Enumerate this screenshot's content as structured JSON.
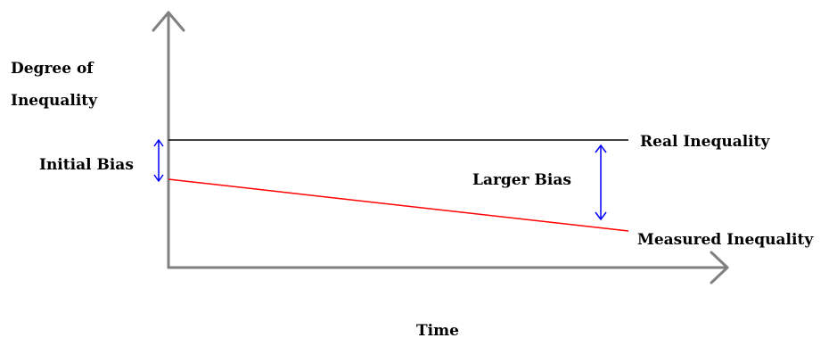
{
  "diagram": {
    "y_axis_label_line1": "Degree of",
    "y_axis_label_line2": "Inequality",
    "x_axis_label": "Time",
    "real_label": "Real Inequality",
    "measured_label": "Measured Inequality",
    "initial_bias_label": "Initial Bias",
    "larger_bias_label": "Larger Bias"
  },
  "colors": {
    "axis": "#808080",
    "real_line": "#000000",
    "measured_line": "#ff0000",
    "bias_arrow": "#0000ff",
    "text": "#000000"
  }
}
